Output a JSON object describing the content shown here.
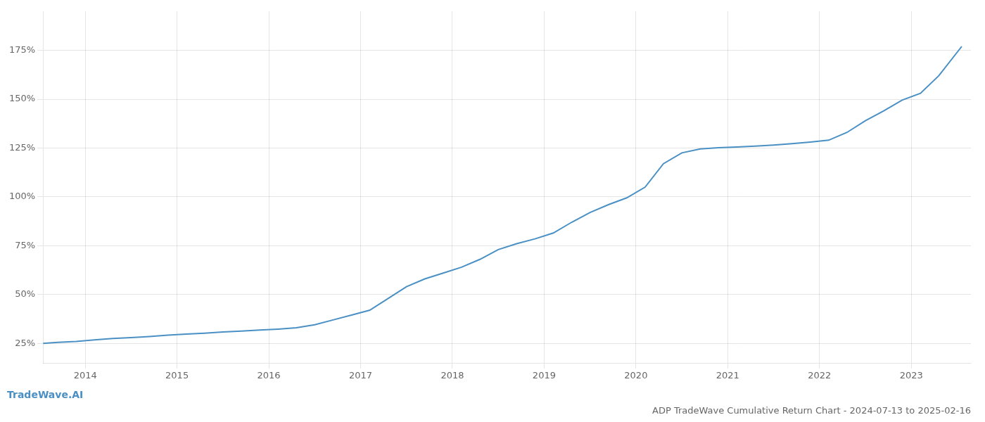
{
  "chart_data": {
    "type": "line",
    "title": "ADP TradeWave Cumulative Return Chart - 2024-07-13 to 2025-02-16",
    "annotations": [
      "TradeWave.AI"
    ],
    "x": [
      2013.54,
      2013.7,
      2013.9,
      2014.1,
      2014.3,
      2014.5,
      2014.7,
      2014.9,
      2015.1,
      2015.3,
      2015.5,
      2015.7,
      2015.9,
      2016.1,
      2016.3,
      2016.5,
      2016.7,
      2016.9,
      2017.1,
      2017.3,
      2017.5,
      2017.7,
      2017.9,
      2018.1,
      2018.3,
      2018.5,
      2018.7,
      2018.9,
      2019.1,
      2019.3,
      2019.5,
      2019.7,
      2019.9,
      2020.1,
      2020.3,
      2020.5,
      2020.7,
      2020.9,
      2021.1,
      2021.3,
      2021.5,
      2021.7,
      2021.9,
      2022.1,
      2022.3,
      2022.5,
      2022.7,
      2022.9,
      2023.1,
      2023.3,
      2023.55
    ],
    "values": [
      25.0,
      25.5,
      26.0,
      26.8,
      27.5,
      28.0,
      28.5,
      29.2,
      29.8,
      30.2,
      30.8,
      31.3,
      31.8,
      32.3,
      33.0,
      34.5,
      37.0,
      39.5,
      42.0,
      48.0,
      54.0,
      58.0,
      61.0,
      64.0,
      68.0,
      73.0,
      76.0,
      78.5,
      81.5,
      87.0,
      92.0,
      96.0,
      99.5,
      105.0,
      117.0,
      122.5,
      124.5,
      125.2,
      125.5,
      126.0,
      126.5,
      127.2,
      128.0,
      129.0,
      133.0,
      139.0,
      144.0,
      149.5,
      153.0,
      162.0,
      177.0
    ],
    "color": "#4a90c4",
    "xlim": [
      2013.54,
      2023.65
    ],
    "xticks": [
      2014,
      2015,
      2016,
      2017,
      2018,
      2019,
      2020,
      2021,
      2022,
      2023
    ],
    "ylim": [
      15,
      195
    ],
    "yticks": [
      {
        "value": 25,
        "label": "25%"
      },
      {
        "value": 50,
        "label": "50%"
      },
      {
        "value": 75,
        "label": "75%"
      },
      {
        "value": 100,
        "label": "100%"
      },
      {
        "value": 125,
        "label": "125%"
      },
      {
        "value": 150,
        "label": "150%"
      },
      {
        "value": 175,
        "label": "175%"
      }
    ],
    "grid": true
  }
}
